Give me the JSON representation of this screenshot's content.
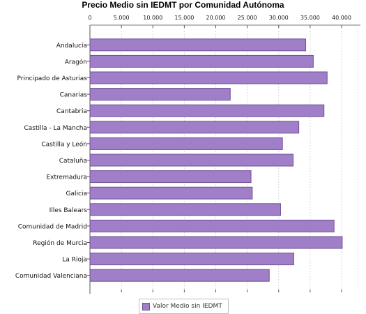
{
  "chart_data": {
    "type": "bar",
    "orientation": "horizontal",
    "title": "Precio Medio sin IEDMT por Comunidad Autónoma",
    "categories": [
      "Andalucía",
      "Aragón",
      "Principado de Asturias",
      "Canarias",
      "Cantabria",
      "Castilla - La Mancha",
      "Castilla y León",
      "Cataluña",
      "Extremadura",
      "Galicia",
      "Illes Balears",
      "Comunidad de Madrid",
      "Región de Murcia",
      "La Rioja",
      "Comunidad Valenciana"
    ],
    "series": [
      {
        "name": "Valor Medio sin IEDMT",
        "values": [
          34300,
          35500,
          37700,
          22300,
          37200,
          33200,
          30600,
          32300,
          25600,
          25800,
          30300,
          38800,
          40100,
          32400,
          28500
        ],
        "color": "#a07fc8"
      }
    ],
    "x_ticks": [
      "0",
      "5.000",
      "10.000",
      "15.000",
      "20.000",
      "25.000",
      "30.000",
      "35.000",
      "40.000"
    ],
    "xlim": [
      0,
      40000
    ],
    "grid": true,
    "legend_position": "bottom"
  }
}
